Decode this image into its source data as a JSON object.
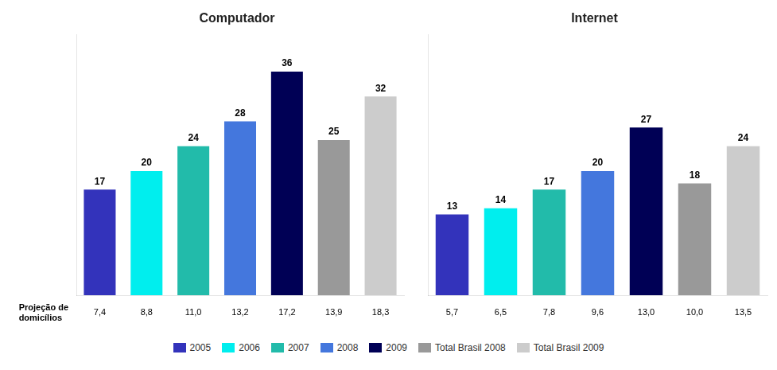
{
  "chart_data": [
    {
      "type": "bar",
      "title": "Computador",
      "categories": [
        "2005",
        "2006",
        "2007",
        "2008",
        "2009",
        "Total Brasil 2008",
        "Total Brasil 2009"
      ],
      "values": [
        17,
        20,
        24,
        28,
        36,
        25,
        32
      ],
      "colors": [
        "#3333bb",
        "#00eeee",
        "#22bbaa",
        "#4477dd",
        "#000055",
        "#999999",
        "#cccccc"
      ],
      "ylim": [
        0,
        42
      ],
      "grid": false,
      "tick_labels": false,
      "data_labels": true,
      "legend": "bottom",
      "projection": {
        "label": [
          "Projeção de",
          "domicílios"
        ],
        "values": [
          7.4,
          8.8,
          11.0,
          13.2,
          17.2,
          13.9,
          18.3
        ],
        "value_labels": [
          "7,4",
          "8,8",
          "11,0",
          "13,2",
          "17,2",
          "13,9",
          "18,3"
        ]
      }
    },
    {
      "type": "bar",
      "title": "Internet",
      "categories": [
        "2005",
        "2006",
        "2007",
        "2008",
        "2009",
        "Total Brasil 2008",
        "Total Brasil 2009"
      ],
      "values": [
        13,
        14,
        17,
        20,
        27,
        18,
        24
      ],
      "colors": [
        "#3333bb",
        "#00eeee",
        "#22bbaa",
        "#4477dd",
        "#000055",
        "#999999",
        "#cccccc"
      ],
      "ylim": [
        0,
        42
      ],
      "grid": false,
      "tick_labels": false,
      "data_labels": true,
      "projection": {
        "values": [
          5.7,
          6.5,
          7.8,
          9.6,
          13.0,
          10.0,
          13.5
        ],
        "value_labels": [
          "5,7",
          "6,5",
          "7,8",
          "9,6",
          "13,0",
          "10,0",
          "13,5"
        ]
      }
    }
  ]
}
